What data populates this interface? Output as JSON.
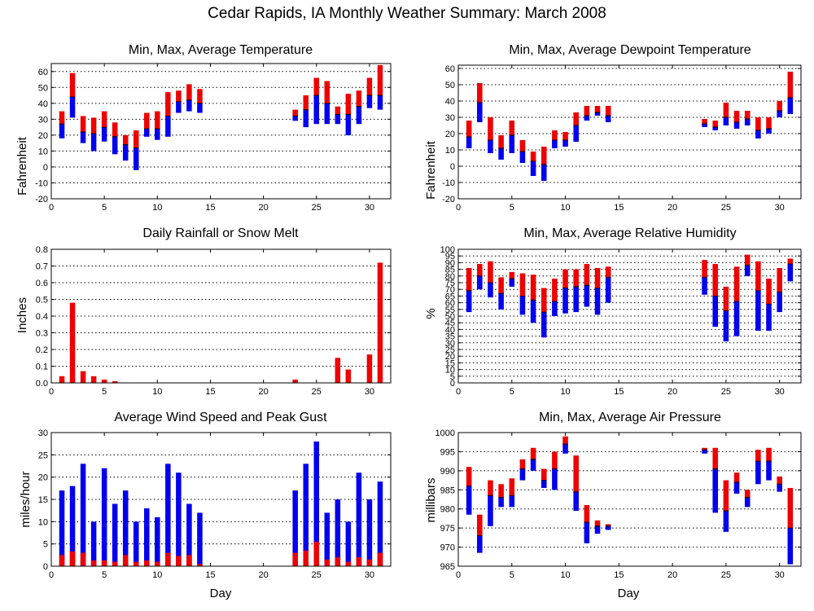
{
  "title": "Cedar Rapids, IA Monthly Weather Summary: March 2008",
  "colors": {
    "max": "#ee0000",
    "min": "#0000ee",
    "avg_line": "#000000"
  },
  "chart_data": [
    {
      "id": "temperature",
      "type": "bar",
      "style": "floating-range",
      "title": "Min, Max, Average Temperature",
      "xlabel": "",
      "ylabel": "Fahrenheit",
      "xlim": [
        0,
        32
      ],
      "xticks": [
        0,
        5,
        10,
        15,
        20,
        25,
        30
      ],
      "ylim": [
        -20,
        65
      ],
      "yticks": [
        -20,
        -10,
        0,
        10,
        20,
        30,
        40,
        50,
        60
      ],
      "grid": true,
      "days": [
        1,
        2,
        3,
        4,
        5,
        6,
        7,
        8,
        9,
        10,
        11,
        12,
        13,
        14,
        23,
        24,
        25,
        26,
        27,
        28,
        29,
        30,
        31
      ],
      "low": [
        18,
        31,
        15,
        10,
        16,
        8,
        4,
        -2,
        19,
        17,
        19,
        34,
        35,
        34,
        29,
        25,
        27,
        27,
        27,
        20,
        27,
        37,
        36
      ],
      "avg": [
        27,
        44,
        22,
        21,
        25,
        19,
        14,
        12,
        24,
        24,
        32,
        41,
        42,
        40,
        32,
        36,
        45,
        40,
        33,
        33,
        38,
        45,
        45
      ],
      "high": [
        35,
        59,
        32,
        31,
        35,
        28,
        20,
        23,
        34,
        35,
        47,
        48,
        52,
        49,
        36,
        45,
        56,
        54,
        38,
        46,
        48,
        56,
        64
      ]
    },
    {
      "id": "dewpoint",
      "type": "bar",
      "style": "floating-range",
      "title": "Min, Max, Average Dewpoint Temperature",
      "xlabel": "",
      "ylabel": "Fahrenheit",
      "xlim": [
        0,
        32
      ],
      "xticks": [
        0,
        5,
        10,
        15,
        20,
        25,
        30
      ],
      "ylim": [
        -20,
        62
      ],
      "yticks": [
        -20,
        -10,
        0,
        10,
        20,
        30,
        40,
        50,
        60
      ],
      "grid": true,
      "days": [
        1,
        2,
        3,
        4,
        5,
        6,
        7,
        8,
        9,
        10,
        11,
        12,
        13,
        14,
        23,
        24,
        25,
        26,
        27,
        28,
        29,
        30,
        31
      ],
      "low": [
        11,
        27,
        8,
        4,
        8,
        2,
        -6,
        -9,
        11,
        12,
        15,
        28,
        31,
        27,
        24,
        22,
        25,
        23,
        25,
        17,
        20,
        30,
        32
      ],
      "avg": [
        18,
        39,
        16,
        11,
        19,
        9,
        3,
        1,
        16,
        16,
        25,
        31,
        33,
        31,
        26,
        24,
        30,
        27,
        29,
        22,
        23,
        34,
        42
      ],
      "high": [
        28,
        51,
        30,
        19,
        28,
        16,
        9,
        12,
        22,
        21,
        33,
        37,
        37,
        37,
        29,
        28,
        39,
        34,
        34,
        30,
        30,
        40,
        58
      ]
    },
    {
      "id": "rainfall",
      "type": "bar",
      "title": "Daily Rainfall or Snow Melt",
      "xlabel": "",
      "ylabel": "Inches",
      "xlim": [
        0,
        32
      ],
      "xticks": [
        0,
        5,
        10,
        15,
        20,
        25,
        30
      ],
      "ylim": [
        0,
        0.8
      ],
      "yticks": [
        0.0,
        0.1,
        0.2,
        0.3,
        0.4,
        0.5,
        0.6,
        0.7,
        0.8
      ],
      "ytick_labels": [
        "0.0",
        "0.1",
        "0.2",
        "0.3",
        "0.4",
        "0.5",
        "0.6",
        "0.7",
        "0.8"
      ],
      "grid": true,
      "days": [
        1,
        2,
        3,
        4,
        5,
        6,
        23,
        27,
        28,
        30,
        31
      ],
      "values": [
        0.04,
        0.48,
        0.07,
        0.04,
        0.02,
        0.01,
        0.02,
        0.15,
        0.08,
        0.17,
        0.72
      ]
    },
    {
      "id": "humidity",
      "type": "bar",
      "style": "floating-range",
      "title": "Min, Max, Average Relative Humidity",
      "xlabel": "",
      "ylabel": "%",
      "xlim": [
        0,
        32
      ],
      "xticks": [
        0,
        5,
        10,
        15,
        20,
        25,
        30
      ],
      "ylim": [
        0,
        100
      ],
      "yticks": [
        0,
        5,
        10,
        15,
        20,
        25,
        30,
        35,
        40,
        45,
        50,
        55,
        60,
        65,
        70,
        75,
        80,
        85,
        90,
        95,
        100
      ],
      "grid": true,
      "days": [
        1,
        2,
        3,
        4,
        5,
        6,
        7,
        8,
        9,
        10,
        11,
        12,
        13,
        14,
        23,
        24,
        25,
        26,
        27,
        28,
        29,
        30,
        31
      ],
      "low": [
        53,
        70,
        64,
        55,
        72,
        51,
        45,
        34,
        50,
        52,
        53,
        57,
        51,
        60,
        66,
        42,
        31,
        35,
        80,
        39,
        39,
        53,
        76
      ],
      "avg": [
        69,
        80,
        75,
        67,
        78,
        65,
        62,
        53,
        61,
        71,
        72,
        73,
        71,
        79,
        79,
        65,
        54,
        61,
        88,
        69,
        59,
        68,
        89
      ],
      "high": [
        86,
        89,
        91,
        79,
        83,
        82,
        81,
        71,
        78,
        85,
        85,
        89,
        86,
        87,
        92,
        89,
        72,
        87,
        96,
        91,
        78,
        86,
        93
      ]
    },
    {
      "id": "wind",
      "type": "bar",
      "style": "overlay",
      "title": "Average Wind Speed and Peak Gust",
      "xlabel": "Day",
      "ylabel": "miles/hour",
      "xlim": [
        0,
        32
      ],
      "xticks": [
        0,
        5,
        10,
        15,
        20,
        25,
        30
      ],
      "ylim": [
        0,
        30
      ],
      "yticks": [
        0,
        5,
        10,
        15,
        20,
        25,
        30
      ],
      "grid": true,
      "days": [
        1,
        2,
        3,
        4,
        5,
        6,
        7,
        8,
        9,
        10,
        11,
        12,
        13,
        14,
        23,
        24,
        25,
        26,
        27,
        28,
        29,
        30,
        31
      ],
      "avg": [
        2.5,
        3.3,
        3.0,
        1.3,
        1.3,
        1.0,
        2.5,
        1.0,
        1.3,
        1.0,
        3.0,
        2.3,
        2.5,
        0.5,
        3.0,
        3.5,
        5.5,
        1.5,
        2.0,
        1.0,
        2.0,
        1.5,
        3.0
      ],
      "gust": [
        17,
        18,
        23,
        10,
        22,
        14,
        17,
        10,
        13,
        11,
        23,
        21,
        14,
        12,
        17,
        23,
        28,
        12,
        15,
        10,
        21,
        15,
        19
      ]
    },
    {
      "id": "pressure",
      "type": "bar",
      "style": "floating-range",
      "title": "Min, Max, Average Air Pressure",
      "xlabel": "Day",
      "ylabel": "millibars",
      "xlim": [
        0,
        32
      ],
      "xticks": [
        0,
        5,
        10,
        15,
        20,
        25,
        30
      ],
      "ylim": [
        965,
        1000
      ],
      "yticks": [
        965,
        970,
        975,
        980,
        985,
        990,
        995,
        1000
      ],
      "grid": true,
      "days": [
        1,
        2,
        3,
        4,
        5,
        6,
        7,
        8,
        9,
        10,
        11,
        12,
        13,
        14,
        23,
        24,
        25,
        26,
        27,
        28,
        29,
        30,
        31
      ],
      "low": [
        978.5,
        968.5,
        975.5,
        980.5,
        980.5,
        987.5,
        990.0,
        985.5,
        985.0,
        994.5,
        979.5,
        971.0,
        973.5,
        974.5,
        994.5,
        979.0,
        974.0,
        984.0,
        980.5,
        986.5,
        987.5,
        984.5,
        965.5
      ],
      "avg": [
        986.0,
        973.0,
        983.5,
        983.0,
        983.5,
        990.5,
        993.0,
        987.5,
        990.5,
        997.0,
        984.5,
        976.5,
        975.5,
        975.5,
        995.5,
        990.5,
        979.5,
        987.0,
        983.0,
        992.5,
        992.5,
        986.5,
        975.0
      ],
      "high": [
        991.0,
        978.5,
        987.5,
        986.5,
        988.0,
        993.0,
        996.0,
        990.5,
        995.0,
        999.0,
        994.0,
        981.0,
        977.0,
        976.0,
        996.0,
        996.0,
        987.5,
        989.5,
        985.0,
        995.5,
        996.0,
        988.5,
        985.5
      ]
    }
  ]
}
